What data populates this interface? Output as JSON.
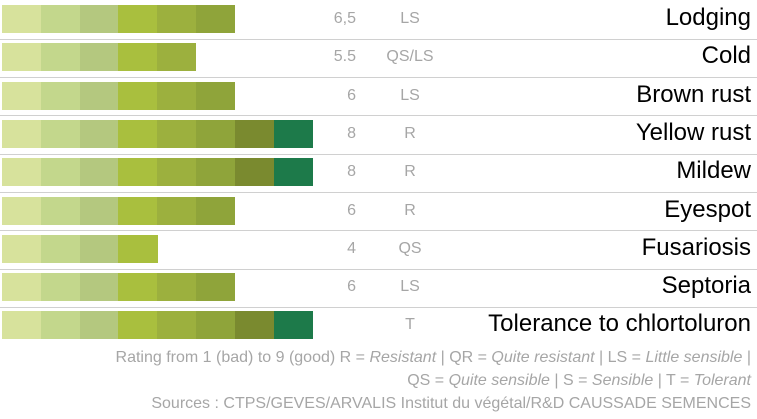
{
  "chart_data": {
    "type": "bar",
    "segment_colors": [
      "#d7e29c",
      "#c3d78c",
      "#b4c87f",
      "#a9bf3e",
      "#9cb03e",
      "#8fa43a",
      "#7a8a2f",
      "#1d7a4a",
      "#145c36"
    ],
    "rows": [
      {
        "trait": "Lodging",
        "value": 6.5,
        "score_label": "6,5",
        "class": "LS"
      },
      {
        "trait": "Cold",
        "value": 5.5,
        "score_label": "5.5",
        "class": "QS/LS"
      },
      {
        "trait": "Brown rust",
        "value": 6,
        "score_label": "6",
        "class": "LS"
      },
      {
        "trait": "Yellow rust",
        "value": 8,
        "score_label": "8",
        "class": "R"
      },
      {
        "trait": "Mildew",
        "value": 8,
        "score_label": "8",
        "class": "R"
      },
      {
        "trait": "Eyespot",
        "value": 6,
        "score_label": "6",
        "class": "R"
      },
      {
        "trait": "Fusariosis",
        "value": 4,
        "score_label": "4",
        "class": "QS"
      },
      {
        "trait": "Septoria",
        "value": 6,
        "score_label": "6",
        "class": "LS"
      },
      {
        "trait": "Tolerance to chlortoluron",
        "value": 8,
        "score_label": "",
        "class": "T"
      }
    ]
  },
  "footer": {
    "line1_prefix": "Rating from 1 (bad) to 9 (good) R = ",
    "resistant": "Resistant",
    "sep1": " | QR = ",
    "quite_resistant": "Quite resistant",
    "sep2": " | LS = ",
    "little_sensible": "Little sensible",
    "sep3": " |",
    "line2_prefix": "QS = ",
    "quite_sensible": "Quite sensible",
    "sep4": " | S = ",
    "sensible": "Sensible",
    "sep5": " | T = ",
    "tolerant": "Tolerant",
    "sources": "Sources : CTPS/GEVES/ARVALIS Institut du végétal/R&D CAUSSADE SEMENCES"
  }
}
